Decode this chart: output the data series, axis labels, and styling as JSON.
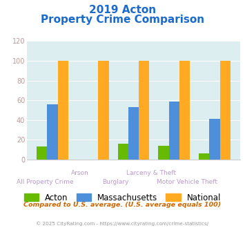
{
  "title_line1": "2019 Acton",
  "title_line2": "Property Crime Comparison",
  "categories": [
    "All Property Crime",
    "Arson",
    "Burglary",
    "Larceny & Theft",
    "Motor Vehicle Theft"
  ],
  "acton": [
    13,
    0,
    16,
    14,
    6
  ],
  "massachusetts": [
    56,
    0,
    53,
    59,
    41
  ],
  "national": [
    100,
    100,
    100,
    100,
    100
  ],
  "acton_color": "#66bb00",
  "mass_color": "#4d8fdb",
  "national_color": "#ffaa22",
  "bg_color": "#ddeef0",
  "title_color": "#1a6acc",
  "xlabel_color": "#bb99cc",
  "ylabel_color": "#bb9999",
  "legend_fontsize": 8.5,
  "title_fontsize": 11,
  "subtitle_note": "Compared to U.S. average. (U.S. average equals 100)",
  "footer": "© 2025 CityRating.com - https://www.cityrating.com/crime-statistics/",
  "ylim": [
    0,
    120
  ],
  "yticks": [
    0,
    20,
    40,
    60,
    80,
    100,
    120
  ],
  "top_labels": [
    "",
    "Arson",
    "",
    "Larceny & Theft",
    ""
  ],
  "bottom_labels": [
    "All Property Crime",
    "",
    "Burglary",
    "",
    "Motor Vehicle Theft"
  ]
}
